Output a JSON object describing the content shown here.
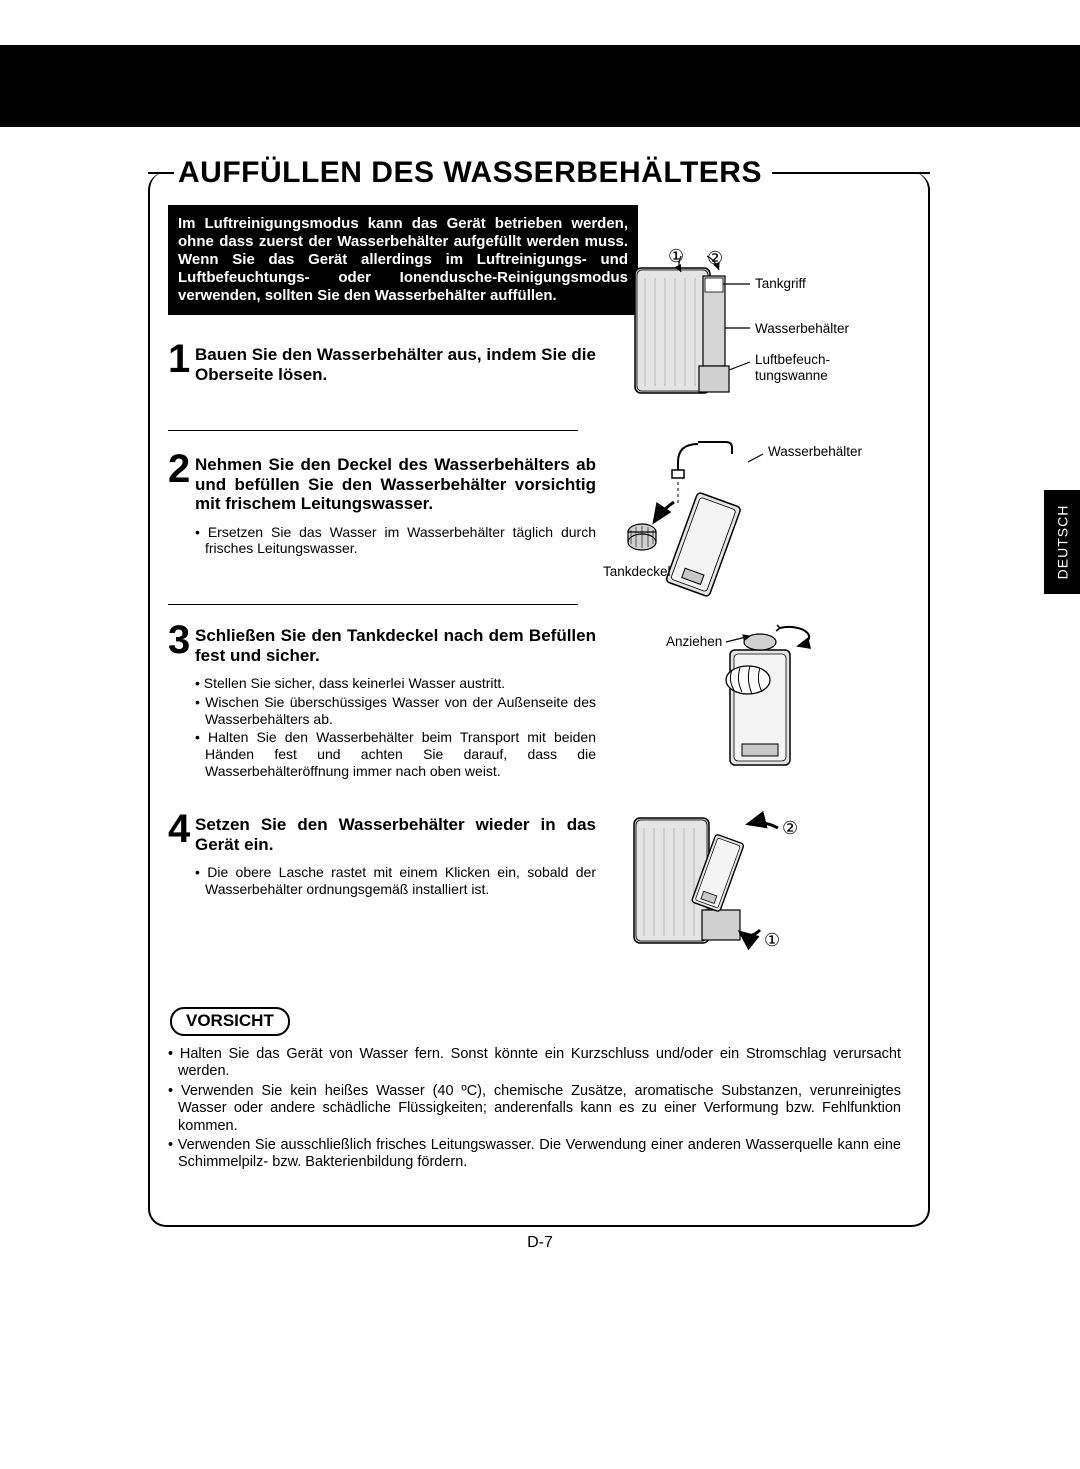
{
  "section_title": "AUFFÜLLEN DES WASSERBEHÄLTERS",
  "intro_text": "Im Luftreinigungsmodus kann das Gerät betrieben werden, ohne dass zuerst der Wasserbehälter aufgefüllt werden muss. Wenn Sie das Gerät allerdings im Luftreinigungs- und Luftbefeuchtungs- oder Ionendusche-Reinigungsmodus verwenden, sollten Sie den Wasserbehälter auffüllen.",
  "steps": {
    "1": {
      "num": "1",
      "title": "Bauen Sie den Wasserbehälter aus, indem Sie die Oberseite lösen.",
      "bullets": []
    },
    "2": {
      "num": "2",
      "title": "Nehmen Sie den Deckel des Wasserbehälters ab und befüllen Sie den Wasserbehälter vorsichtig mit frischem Leitungswasser.",
      "bullets": [
        "Ersetzen Sie das Wasser im Wasserbehälter täglich durch frisches Leitungswasser."
      ]
    },
    "3": {
      "num": "3",
      "title": "Schließen Sie den Tankdeckel nach dem Befüllen fest und sicher.",
      "bullets": [
        "Stellen Sie sicher, dass keinerlei Wasser austritt.",
        "Wischen Sie überschüssiges Wasser von der Außenseite des Wasserbehälters ab.",
        "Halten Sie den Wasserbehälter beim Transport mit beiden Händen fest und achten Sie darauf, dass die Wasserbehälteröffnung immer nach oben weist."
      ]
    },
    "4": {
      "num": "4",
      "title": "Setzen Sie den Wasserbehälter wieder in das Gerät ein.",
      "bullets": [
        "Die obere Lasche rastet mit einem Klicken ein, sobald der Wasserbehälter ordnungsgemäß installiert ist."
      ]
    }
  },
  "vorsicht": {
    "label": "VORSICHT",
    "bullets": [
      "Halten Sie das Gerät von Wasser fern. Sonst könnte ein Kurzschluss und/oder ein Stromschlag verursacht werden.",
      "Verwenden Sie kein heißes Wasser (40 ºC), chemische Zusätze, aromatische Substanzen, verunreinigtes Wasser oder andere schädliche Flüssigkeiten; anderenfalls kann es zu einer Verformung bzw. Fehlfunktion kommen.",
      "Verwenden Sie ausschließlich frisches Leitungswasser. Die Verwendung einer anderen Wasserquelle kann eine Schimmelpilz- bzw. Bakterienbildung fördern."
    ]
  },
  "diagram1": {
    "num1": "①",
    "num2": "②",
    "labels": {
      "tankgriff": "Tankgriff",
      "wasserbehalter": "Wasserbehälter",
      "luftbefeuchtungswanne": "Luftbefeuch-\ntungswanne"
    }
  },
  "diagram2": {
    "labels": {
      "wasserbehalter": "Wasserbehälter",
      "tankdeckel": "Tankdeckel"
    }
  },
  "diagram3": {
    "labels": {
      "anziehen": "Anziehen"
    }
  },
  "diagram4": {
    "num1": "①",
    "num2": "②"
  },
  "side_tab": "DEUTSCH",
  "page_num": "D-7"
}
